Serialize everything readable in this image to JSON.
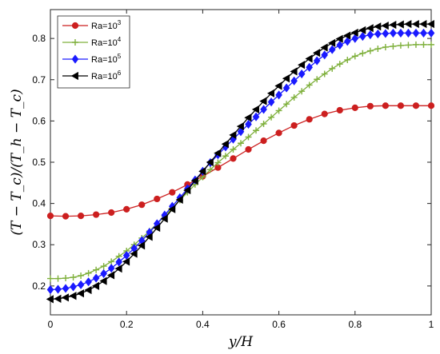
{
  "chart_data": {
    "type": "line",
    "title": "",
    "xlabel": "y/H",
    "ylabel": "(T − T_c)/(T_h − T_c)",
    "xlim": [
      0,
      1
    ],
    "ylim": [
      0.13,
      0.87
    ],
    "xticks": [
      "0",
      "0.2",
      "0.4",
      "0.6",
      "0.8",
      "1"
    ],
    "yticks": [
      "0.2",
      "0.3",
      "0.4",
      "0.5",
      "0.6",
      "0.7",
      "0.8"
    ],
    "grid": false,
    "legend_position": "top-left",
    "series": [
      {
        "name_base": "Ra=10",
        "name_exp": "3",
        "color": "#cc1f1f",
        "marker": "circle",
        "x": [
          0,
          0.04,
          0.08,
          0.12,
          0.16,
          0.2,
          0.24,
          0.28,
          0.32,
          0.36,
          0.4,
          0.44,
          0.48,
          0.52,
          0.56,
          0.6,
          0.64,
          0.68,
          0.72,
          0.76,
          0.8,
          0.84,
          0.88,
          0.92,
          0.96,
          1
        ],
        "y": [
          0.37,
          0.369,
          0.37,
          0.373,
          0.378,
          0.386,
          0.397,
          0.411,
          0.427,
          0.446,
          0.466,
          0.487,
          0.509,
          0.531,
          0.552,
          0.571,
          0.589,
          0.604,
          0.617,
          0.626,
          0.632,
          0.636,
          0.637,
          0.637,
          0.637,
          0.637
        ]
      },
      {
        "name_base": "Ra=10",
        "name_exp": "4",
        "color": "#7fb03c",
        "marker": "plus",
        "x": [
          0,
          0.02,
          0.04,
          0.06,
          0.08,
          0.1,
          0.12,
          0.14,
          0.16,
          0.18,
          0.2,
          0.22,
          0.24,
          0.26,
          0.28,
          0.3,
          0.32,
          0.34,
          0.36,
          0.38,
          0.4,
          0.42,
          0.44,
          0.46,
          0.48,
          0.5,
          0.52,
          0.54,
          0.56,
          0.58,
          0.6,
          0.62,
          0.64,
          0.66,
          0.68,
          0.7,
          0.72,
          0.74,
          0.76,
          0.78,
          0.8,
          0.82,
          0.84,
          0.86,
          0.88,
          0.9,
          0.92,
          0.94,
          0.96,
          0.98,
          1
        ],
        "y": [
          0.218,
          0.218,
          0.219,
          0.221,
          0.225,
          0.231,
          0.239,
          0.248,
          0.259,
          0.272,
          0.285,
          0.3,
          0.316,
          0.333,
          0.351,
          0.369,
          0.388,
          0.408,
          0.427,
          0.446,
          0.464,
          0.482,
          0.499,
          0.515,
          0.531,
          0.546,
          0.561,
          0.577,
          0.593,
          0.609,
          0.625,
          0.641,
          0.657,
          0.672,
          0.687,
          0.701,
          0.714,
          0.727,
          0.738,
          0.748,
          0.757,
          0.764,
          0.77,
          0.775,
          0.779,
          0.781,
          0.783,
          0.784,
          0.785,
          0.785,
          0.785
        ]
      },
      {
        "name_base": "Ra=10",
        "name_exp": "5",
        "color": "#1a1aff",
        "marker": "diamond",
        "x": [
          0,
          0.02,
          0.04,
          0.06,
          0.08,
          0.1,
          0.12,
          0.14,
          0.16,
          0.18,
          0.2,
          0.22,
          0.24,
          0.26,
          0.28,
          0.3,
          0.32,
          0.34,
          0.36,
          0.38,
          0.4,
          0.42,
          0.44,
          0.46,
          0.48,
          0.5,
          0.52,
          0.54,
          0.56,
          0.58,
          0.6,
          0.62,
          0.64,
          0.66,
          0.68,
          0.7,
          0.72,
          0.74,
          0.76,
          0.78,
          0.8,
          0.82,
          0.84,
          0.86,
          0.88,
          0.9,
          0.92,
          0.94,
          0.96,
          0.98,
          1
        ],
        "y": [
          0.191,
          0.192,
          0.194,
          0.198,
          0.203,
          0.21,
          0.219,
          0.23,
          0.243,
          0.258,
          0.274,
          0.291,
          0.31,
          0.33,
          0.351,
          0.372,
          0.393,
          0.414,
          0.436,
          0.457,
          0.478,
          0.499,
          0.518,
          0.537,
          0.556,
          0.574,
          0.592,
          0.61,
          0.628,
          0.646,
          0.663,
          0.68,
          0.697,
          0.714,
          0.73,
          0.746,
          0.76,
          0.773,
          0.784,
          0.793,
          0.8,
          0.805,
          0.809,
          0.811,
          0.812,
          0.813,
          0.813,
          0.813,
          0.813,
          0.813,
          0.813
        ]
      },
      {
        "name_base": "Ra=10",
        "name_exp": "6",
        "color": "#000000",
        "marker": "triangle-left",
        "x": [
          0,
          0.02,
          0.04,
          0.06,
          0.08,
          0.1,
          0.12,
          0.14,
          0.16,
          0.18,
          0.2,
          0.22,
          0.24,
          0.26,
          0.28,
          0.3,
          0.32,
          0.34,
          0.36,
          0.38,
          0.4,
          0.42,
          0.44,
          0.46,
          0.48,
          0.5,
          0.52,
          0.54,
          0.56,
          0.58,
          0.6,
          0.62,
          0.64,
          0.66,
          0.68,
          0.7,
          0.72,
          0.74,
          0.76,
          0.78,
          0.8,
          0.82,
          0.84,
          0.86,
          0.88,
          0.9,
          0.92,
          0.94,
          0.96,
          0.98,
          1
        ],
        "y": [
          0.168,
          0.169,
          0.172,
          0.176,
          0.182,
          0.19,
          0.2,
          0.212,
          0.226,
          0.242,
          0.259,
          0.278,
          0.298,
          0.319,
          0.341,
          0.363,
          0.386,
          0.409,
          0.432,
          0.455,
          0.478,
          0.5,
          0.522,
          0.544,
          0.566,
          0.587,
          0.608,
          0.628,
          0.648,
          0.667,
          0.685,
          0.703,
          0.72,
          0.736,
          0.751,
          0.765,
          0.778,
          0.789,
          0.799,
          0.807,
          0.814,
          0.82,
          0.825,
          0.829,
          0.831,
          0.833,
          0.834,
          0.835,
          0.835,
          0.835,
          0.835
        ]
      }
    ]
  }
}
